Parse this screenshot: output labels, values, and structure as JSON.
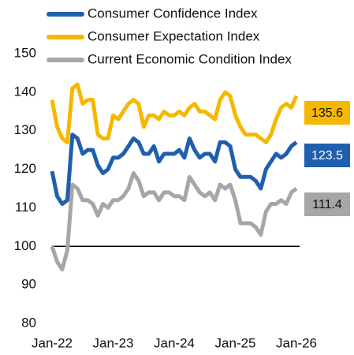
{
  "chart_data": {
    "type": "line",
    "categories": [
      "Jan-22",
      null,
      null,
      null,
      null,
      null,
      null,
      null,
      null,
      null,
      null,
      null,
      "Jan-23",
      null,
      null,
      null,
      null,
      null,
      null,
      null,
      null,
      null,
      null,
      null,
      "Jan-24",
      null,
      null,
      null,
      null,
      null,
      null,
      null,
      null,
      null,
      null,
      null,
      "Jan-25",
      null,
      null,
      null,
      null,
      null,
      null,
      null,
      null,
      null,
      null,
      null,
      "Jan-26"
    ],
    "series": [
      {
        "name": "Consumer Confidence Index",
        "color": "#1f5fad",
        "callout": 123.5,
        "values": [
          119.5,
          113,
          111,
          112,
          129,
          128,
          124,
          125,
          125,
          121,
          119,
          120,
          123,
          123,
          124,
          126,
          128,
          127,
          124,
          124,
          126,
          122,
          124,
          124,
          124,
          125,
          123,
          128,
          125,
          123,
          124,
          124,
          122,
          127,
          127,
          126,
          120,
          118,
          118,
          118,
          117,
          115,
          120,
          122,
          124,
          123,
          124,
          126,
          127
        ]
      },
      {
        "name": "Consumer Expectation Index",
        "color": "#f5b800",
        "callout": 135.6,
        "values": [
          138,
          131,
          128,
          127,
          141,
          142,
          137,
          138,
          138,
          129,
          128,
          128,
          134,
          133,
          135,
          137,
          138,
          137,
          131,
          134,
          134,
          133,
          135,
          134,
          134,
          135,
          134,
          136,
          137,
          135,
          135,
          134,
          133,
          138,
          140,
          139,
          134,
          131,
          129,
          129,
          129,
          128,
          127,
          129,
          133,
          136,
          137,
          136,
          139
        ]
      },
      {
        "name": "Current Economic Condition Index",
        "color": "#a6a6a6",
        "callout": 111.4,
        "values": [
          100,
          96,
          94,
          99,
          116,
          115,
          112,
          112,
          111,
          108,
          111,
          110,
          112,
          112,
          113,
          115,
          119,
          117,
          113,
          114,
          114,
          112,
          114,
          114,
          113,
          113,
          112,
          118,
          116,
          114,
          113,
          114,
          112,
          116,
          115,
          116,
          112,
          106,
          106,
          106,
          105,
          103,
          109,
          111,
          111,
          112,
          111,
          114,
          115
        ]
      }
    ],
    "reference_line": 100,
    "ylim": [
      80,
      150
    ],
    "yticks": [
      80,
      90,
      100,
      110,
      120,
      130,
      140,
      150
    ],
    "legend": "top-left"
  }
}
